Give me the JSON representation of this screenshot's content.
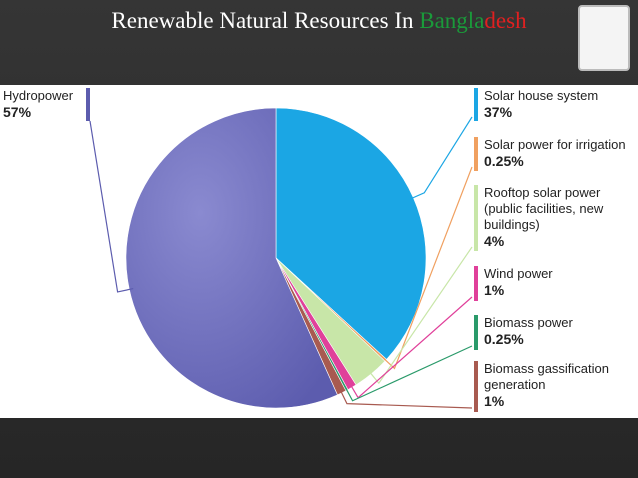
{
  "chart_data": {
    "type": "pie",
    "title_parts": [
      {
        "text": "Renewable Natural Resources In ",
        "color": "#ffffff"
      },
      {
        "text": "Bangla",
        "color": "#1a9a3a"
      },
      {
        "text": "desh",
        "color": "#e02020"
      }
    ],
    "categories": [
      "Solar house system",
      "Solar power for irrigation",
      "Rooftop solar power (public facilities, new buildings)",
      "Wind power",
      "Biomass power",
      "Biomass gassification generation",
      "Hydropower"
    ],
    "values": [
      37,
      0.25,
      4,
      1,
      0.25,
      1,
      57
    ],
    "value_labels": [
      "37%",
      "0.25%",
      "4%",
      "1%",
      "0.25%",
      "1%",
      "57%"
    ],
    "colors": [
      "#1ba6e4",
      "#f0a060",
      "#c8e6a8",
      "#e0409a",
      "#2a9a6a",
      "#a85a50",
      "#5c5cae"
    ]
  }
}
